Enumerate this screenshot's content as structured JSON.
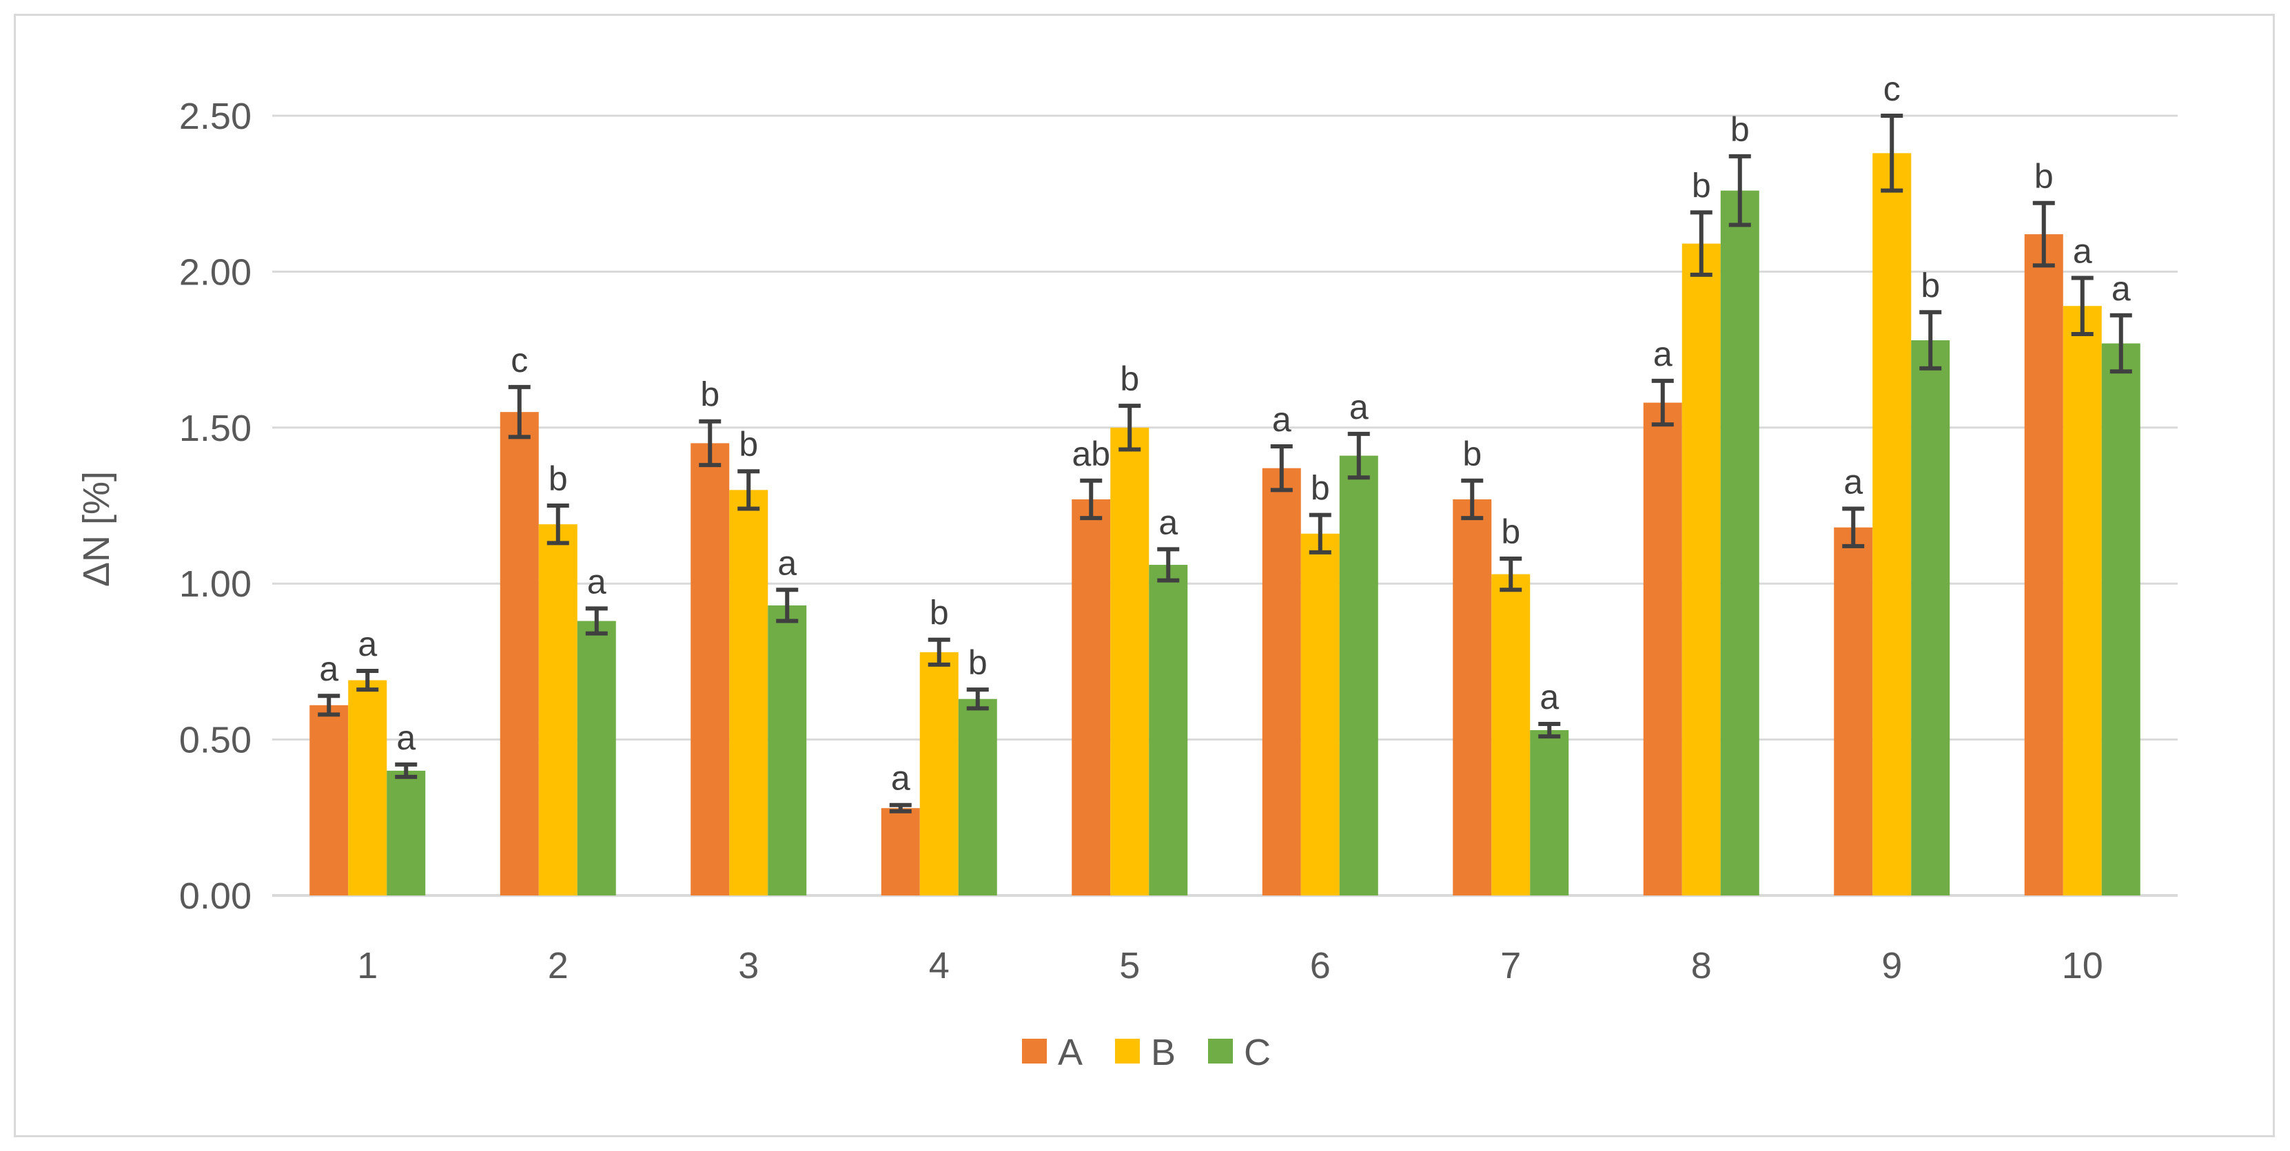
{
  "chart_data": {
    "type": "bar",
    "title": "",
    "xlabel": "",
    "ylabel": "ΔN [%]",
    "ylim": [
      0,
      2.5
    ],
    "yticks": [
      "0.00",
      "0.50",
      "1.00",
      "1.50",
      "2.00",
      "2.50"
    ],
    "ytick_values": [
      0,
      0.5,
      1.0,
      1.5,
      2.0,
      2.5
    ],
    "grid": true,
    "legend_position": "bottom",
    "categories": [
      "1",
      "2",
      "3",
      "4",
      "5",
      "6",
      "7",
      "8",
      "9",
      "10"
    ],
    "series": [
      {
        "name": "A",
        "color": "#ED7D31",
        "values": [
          0.61,
          1.55,
          1.45,
          0.28,
          1.27,
          1.37,
          1.27,
          1.58,
          1.18,
          2.12
        ],
        "errors": [
          0.03,
          0.08,
          0.07,
          0.01,
          0.06,
          0.07,
          0.06,
          0.07,
          0.06,
          0.1
        ],
        "letters": [
          "a",
          "c",
          "b",
          "a",
          "ab",
          "a",
          "b",
          "a",
          "a",
          "b"
        ]
      },
      {
        "name": "B",
        "color": "#FFC000",
        "values": [
          0.69,
          1.19,
          1.3,
          0.78,
          1.5,
          1.16,
          1.03,
          2.09,
          2.38,
          1.89
        ],
        "errors": [
          0.03,
          0.06,
          0.06,
          0.04,
          0.07,
          0.06,
          0.05,
          0.1,
          0.12,
          0.09
        ],
        "letters": [
          "a",
          "b",
          "b",
          "b",
          "b",
          "b",
          "b",
          "b",
          "c",
          "a"
        ]
      },
      {
        "name": "C",
        "color": "#70AD47",
        "values": [
          0.4,
          0.88,
          0.93,
          0.63,
          1.06,
          1.41,
          0.53,
          2.26,
          1.78,
          1.77
        ],
        "errors": [
          0.02,
          0.04,
          0.05,
          0.03,
          0.05,
          0.07,
          0.02,
          0.11,
          0.09,
          0.09
        ],
        "letters": [
          "a",
          "a",
          "a",
          "b",
          "a",
          "a",
          "a",
          "b",
          "b",
          "a"
        ]
      }
    ]
  }
}
